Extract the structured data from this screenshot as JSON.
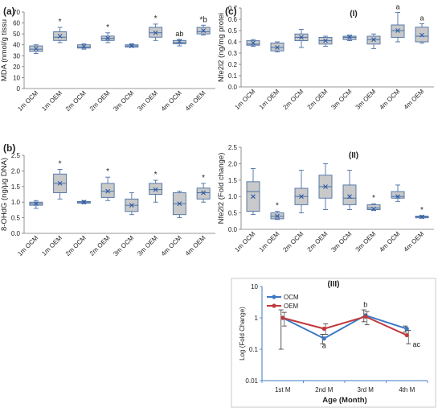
{
  "chart_data": [
    {
      "panel_label": "(a)",
      "type": "box",
      "ylabel": "MDA (nmol/g tissu",
      "ylim": [
        0,
        70
      ],
      "yticks": [
        0,
        10,
        20,
        30,
        40,
        50,
        60,
        70
      ],
      "categories": [
        "1m OCM",
        "1m OEM",
        "2m OCM",
        "2m OEM",
        "3m OCM",
        "3m OEM",
        "4m OCM",
        "4m OEM"
      ],
      "boxes": [
        {
          "min": 32,
          "q1": 34,
          "median": 36,
          "q3": 39,
          "max": 40,
          "mean": 36.5,
          "ann": ""
        },
        {
          "min": 42,
          "q1": 44,
          "median": 47,
          "q3": 52,
          "max": 56,
          "mean": 48,
          "ann": "*"
        },
        {
          "min": 36,
          "q1": 37,
          "median": 38,
          "q3": 40,
          "max": 41,
          "mean": 38.5,
          "ann": ""
        },
        {
          "min": 42,
          "q1": 44,
          "median": 46,
          "q3": 48,
          "max": 51,
          "mean": 46,
          "ann": "*"
        },
        {
          "min": 38,
          "q1": 38,
          "median": 39,
          "q3": 40,
          "max": 41,
          "mean": 39,
          "ann": ""
        },
        {
          "min": 44,
          "q1": 47,
          "median": 51,
          "q3": 56,
          "max": 59,
          "mean": 51,
          "ann": "*"
        },
        {
          "min": 39,
          "q1": 41,
          "median": 42,
          "q3": 44,
          "max": 45,
          "mean": 43,
          "ann": "ab"
        },
        {
          "min": 49,
          "q1": 50,
          "median": 52,
          "q3": 56,
          "max": 58,
          "mean": 53,
          "ann": "*b"
        }
      ]
    },
    {
      "panel_label": "(b)",
      "type": "box",
      "ylabel": "8-OHdG (ng/µg DNA)",
      "ylim": [
        0.0,
        2.5
      ],
      "yticks": [
        0.0,
        0.5,
        1.0,
        1.5,
        2.0,
        2.5
      ],
      "categories": [
        "1m OCM",
        "1m OEM",
        "2m OCM",
        "2m OEM",
        "3m OCM",
        "3m OEM",
        "4m OCM",
        "4m OEM"
      ],
      "boxes": [
        {
          "min": 0.8,
          "q1": 0.9,
          "median": 0.95,
          "q3": 1.0,
          "max": 1.05,
          "mean": 0.95,
          "ann": ""
        },
        {
          "min": 1.1,
          "q1": 1.3,
          "median": 1.6,
          "q3": 1.9,
          "max": 2.05,
          "mean": 1.6,
          "ann": "*"
        },
        {
          "min": 0.95,
          "q1": 0.97,
          "median": 1.0,
          "q3": 1.02,
          "max": 1.05,
          "mean": 1.0,
          "ann": ""
        },
        {
          "min": 1.05,
          "q1": 1.15,
          "median": 1.35,
          "q3": 1.6,
          "max": 1.8,
          "mean": 1.35,
          "ann": "*"
        },
        {
          "min": 0.6,
          "q1": 0.7,
          "median": 0.9,
          "q3": 1.1,
          "max": 1.3,
          "mean": 0.9,
          "ann": ""
        },
        {
          "min": 1.0,
          "q1": 1.25,
          "median": 1.4,
          "q3": 1.6,
          "max": 1.7,
          "mean": 1.4,
          "ann": "*"
        },
        {
          "min": 0.5,
          "q1": 0.6,
          "median": 0.95,
          "q3": 1.3,
          "max": 1.35,
          "mean": 0.95,
          "ann": ""
        },
        {
          "min": 1.0,
          "q1": 1.1,
          "median": 1.3,
          "q3": 1.45,
          "max": 1.6,
          "mean": 1.3,
          "ann": "*"
        }
      ]
    },
    {
      "panel_label": "(c)",
      "subtitle": "(I)",
      "type": "box",
      "ylabel": "Nfe2l2 (ng/mg protei",
      "ylim": [
        0.0,
        0.7
      ],
      "yticks": [
        0.0,
        0.1,
        0.2,
        0.3,
        0.4,
        0.5,
        0.6,
        0.7
      ],
      "categories": [
        "1m OCM",
        "1m OEM",
        "2m OCM",
        "2m OEM",
        "3m OCM",
        "3m OEM",
        "4m OCM",
        "4m OEM"
      ],
      "boxes": [
        {
          "min": 0.36,
          "q1": 0.37,
          "median": 0.38,
          "q3": 0.41,
          "max": 0.42,
          "mean": 0.39,
          "ann": ""
        },
        {
          "min": 0.31,
          "q1": 0.32,
          "median": 0.35,
          "q3": 0.39,
          "max": 0.4,
          "mean": 0.35,
          "ann": ""
        },
        {
          "min": 0.35,
          "q1": 0.41,
          "median": 0.44,
          "q3": 0.47,
          "max": 0.51,
          "mean": 0.44,
          "ann": ""
        },
        {
          "min": 0.36,
          "q1": 0.38,
          "median": 0.41,
          "q3": 0.44,
          "max": 0.45,
          "mean": 0.41,
          "ann": ""
        },
        {
          "min": 0.41,
          "q1": 0.42,
          "median": 0.44,
          "q3": 0.45,
          "max": 0.46,
          "mean": 0.44,
          "ann": ""
        },
        {
          "min": 0.34,
          "q1": 0.38,
          "median": 0.42,
          "q3": 0.45,
          "max": 0.47,
          "mean": 0.42,
          "ann": ""
        },
        {
          "min": 0.4,
          "q1": 0.44,
          "median": 0.5,
          "q3": 0.55,
          "max": 0.66,
          "mean": 0.5,
          "ann": "a"
        },
        {
          "min": 0.39,
          "q1": 0.4,
          "median": 0.45,
          "q3": 0.53,
          "max": 0.56,
          "mean": 0.46,
          "ann": "a"
        }
      ]
    },
    {
      "panel_label": "",
      "subtitle": "(II)",
      "type": "box",
      "ylabel": "Nfe2l2 (Fold change)",
      "ylim": [
        0.0,
        2.5
      ],
      "yticks": [
        0.0,
        0.5,
        1.0,
        1.5,
        2.0,
        2.5
      ],
      "categories": [
        "1m OCM",
        "1m OEM",
        "2m OCM",
        "2m OEM",
        "3m OCM",
        "3m OEM",
        "4m OCM",
        "4m OEM"
      ],
      "boxes": [
        {
          "min": 0.45,
          "q1": 0.55,
          "median": 1.15,
          "q3": 1.45,
          "max": 1.85,
          "mean": 1.0,
          "ann": ""
        },
        {
          "min": 0.3,
          "q1": 0.32,
          "median": 0.4,
          "q3": 0.5,
          "max": 0.55,
          "mean": 0.4,
          "ann": "*"
        },
        {
          "min": 0.5,
          "q1": 0.75,
          "median": 1.0,
          "q3": 1.25,
          "max": 1.8,
          "mean": 1.0,
          "ann": ""
        },
        {
          "min": 0.6,
          "q1": 0.95,
          "median": 1.3,
          "q3": 1.65,
          "max": 2.0,
          "mean": 1.3,
          "ann": ""
        },
        {
          "min": 0.6,
          "q1": 0.75,
          "median": 0.95,
          "q3": 1.35,
          "max": 1.8,
          "mean": 1.0,
          "ann": ""
        },
        {
          "min": 0.58,
          "q1": 0.6,
          "median": 0.65,
          "q3": 0.75,
          "max": 0.78,
          "mean": 0.62,
          "ann": "*"
        },
        {
          "min": 0.85,
          "q1": 0.95,
          "median": 1.0,
          "q3": 1.15,
          "max": 1.35,
          "mean": 1.0,
          "ann": ""
        },
        {
          "min": 0.34,
          "q1": 0.35,
          "median": 0.38,
          "q3": 0.4,
          "max": 0.42,
          "mean": 0.38,
          "ann": "*"
        }
      ]
    },
    {
      "panel_label": "",
      "subtitle": "(III)",
      "type": "line",
      "log_scale": true,
      "xlabel": "Age (Month)",
      "ylabel": "Log (Fold Change)",
      "ylim": [
        0.01,
        10
      ],
      "yticks": [
        0.01,
        0.1,
        1,
        10
      ],
      "ytick_labels": [
        "0.01",
        "0.1",
        "1",
        "10"
      ],
      "categories": [
        "1st M",
        "2nd M",
        "3rd M",
        "4th M"
      ],
      "series": [
        {
          "name": "OCM",
          "color": "#3b78c6",
          "values": [
            1.0,
            0.22,
            1.2,
            0.45
          ],
          "err": [
            [
              0.1,
              1.8
            ],
            [
              0.15,
              0.3
            ],
            [
              0.75,
              1.8
            ],
            [
              0.35,
              0.55
            ]
          ]
        },
        {
          "name": "OEM",
          "color": "#c0393b",
          "values": [
            1.0,
            0.45,
            1.1,
            0.28
          ],
          "err": [
            [
              0.55,
              1.5
            ],
            [
              0.3,
              0.65
            ],
            [
              0.6,
              1.6
            ],
            [
              0.15,
              0.4
            ]
          ]
        }
      ],
      "annotations": [
        {
          "text": "a",
          "category": 1,
          "value": 0.11,
          "color": "#3b78c6"
        },
        {
          "text": "b",
          "category": 2,
          "value": 2.2,
          "color": "#3b78c6"
        },
        {
          "text": "ac",
          "category": 3,
          "value": 0.12,
          "color": "#c0393b"
        }
      ],
      "legend_placement": "top-left"
    }
  ]
}
